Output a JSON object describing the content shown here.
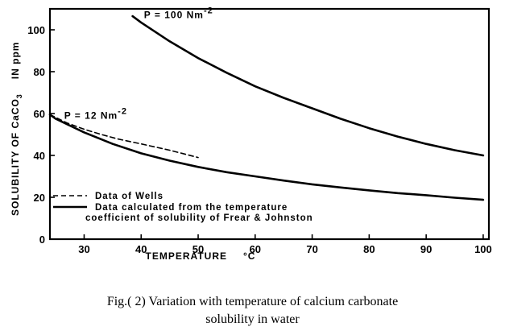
{
  "chart_data": {
    "type": "line",
    "xlabel": "TEMPERATURE",
    "xunit": "°C",
    "ylabel": "SOLUBILITY OF CaCO",
    "ylabel_sub": "3",
    "ylabel_tail": "IN ppm",
    "xlim": [
      24,
      101
    ],
    "ylim": [
      0,
      110
    ],
    "x_ticks": [
      30,
      40,
      50,
      60,
      70,
      80,
      90,
      100
    ],
    "y_ticks": [
      0,
      20,
      40,
      60,
      80,
      100
    ],
    "grid": false,
    "legend": {
      "placement": "lower-left",
      "entries": [
        {
          "style": "dashed",
          "label": "Data of Wells"
        },
        {
          "style": "solid",
          "label": "Data calculated from the temperature",
          "label2": "coefficient of solubility of Frear & Johnston"
        }
      ]
    },
    "annotations": [
      {
        "text": "P = 100 Nm",
        "sup": "-2",
        "x": 40.5,
        "y": 105.5
      },
      {
        "text": "P = 12 Nm",
        "sup": "-2",
        "x": 26.5,
        "y": 57.5
      }
    ],
    "series": [
      {
        "style": "solid",
        "x": [
          38.5,
          40,
          45,
          50,
          55,
          60,
          65,
          70,
          75,
          80,
          85,
          90,
          95,
          100
        ],
        "y": [
          106.5,
          103.5,
          94.5,
          86.5,
          79.5,
          73,
          67.5,
          62.5,
          57.5,
          53,
          49,
          45.5,
          42.5,
          40
        ]
      },
      {
        "style": "solid",
        "x": [
          24,
          25,
          30,
          35,
          40,
          45,
          50,
          55,
          60,
          65,
          70,
          75,
          80,
          85,
          90,
          95,
          100
        ],
        "y": [
          59.5,
          57.5,
          51,
          45.5,
          41,
          37.5,
          34.5,
          32,
          30,
          28,
          26.2,
          24.7,
          23.3,
          22,
          21,
          19.8,
          18.8
        ]
      },
      {
        "style": "dashed",
        "x": [
          24,
          27,
          30,
          33,
          36,
          40,
          45,
          50
        ],
        "y": [
          59.5,
          55.5,
          52.5,
          50,
          47.8,
          45.5,
          42.5,
          39
        ]
      }
    ]
  },
  "caption": {
    "line1": "Fig.( 2) Variation with temperature of calcium carbonate",
    "line2": "solubility in water"
  }
}
